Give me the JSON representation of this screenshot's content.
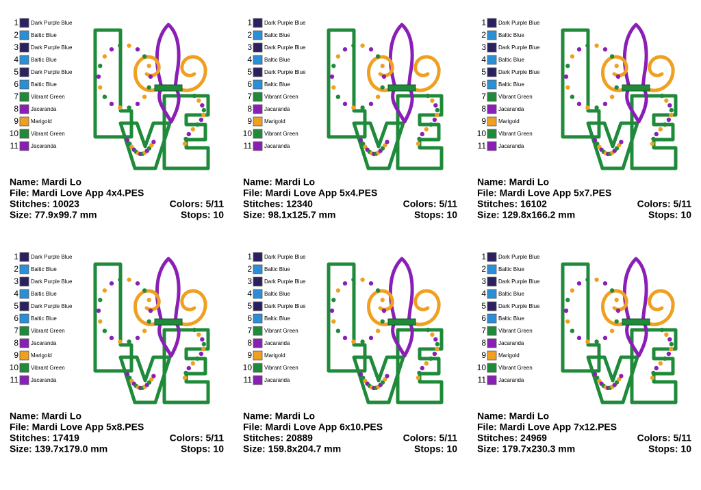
{
  "thread_colors": [
    {
      "number": "1",
      "name": "Dark Purple Blue",
      "color": "#2b2060"
    },
    {
      "number": "2",
      "name": "Baltic Blue",
      "color": "#2a8fd6"
    },
    {
      "number": "3",
      "name": "Dark Purple Blue",
      "color": "#2b2060"
    },
    {
      "number": "4",
      "name": "Baltic Blue",
      "color": "#2a8fd6"
    },
    {
      "number": "5",
      "name": "Dark Purple Blue",
      "color": "#2b2060"
    },
    {
      "number": "6",
      "name": "Baltic Blue",
      "color": "#2a8fd6"
    },
    {
      "number": "7",
      "name": "Vibrant Green",
      "color": "#1f8a3a"
    },
    {
      "number": "8",
      "name": "Jacaranda",
      "color": "#8a1fb5"
    },
    {
      "number": "9",
      "name": "Marigold",
      "color": "#f0a020"
    },
    {
      "number": "10",
      "name": "Vibrant Green",
      "color": "#1f8a3a"
    },
    {
      "number": "11",
      "name": "Jacaranda",
      "color": "#8a1fb5"
    }
  ],
  "panels": [
    {
      "name": "Name: Mardi Lo",
      "file": "File: Mardi Love App 4x4.PES",
      "stitches": "Stitches: 10023",
      "colors": "Colors: 5/11",
      "size": "Size: 77.9x99.7 mm",
      "stops": "Stops: 10"
    },
    {
      "name": "Name: Mardi Lo",
      "file": "File: Mardi Love App 5x4.PES",
      "stitches": "Stitches: 12340",
      "colors": "Colors: 5/11",
      "size": "Size: 98.1x125.7 mm",
      "stops": "Stops: 10"
    },
    {
      "name": "Name: Mardi Lo",
      "file": "File: Mardi Love App 5x7.PES",
      "stitches": "Stitches: 16102",
      "colors": "Colors: 5/11",
      "size": "Size: 129.8x166.2 mm",
      "stops": "Stops: 10"
    },
    {
      "name": "Name: Mardi Lo",
      "file": "File: Mardi Love App 5x8.PES",
      "stitches": "Stitches: 17419",
      "colors": "Colors: 5/11",
      "size": "Size: 139.7x179.0 mm",
      "stops": "Stops: 10"
    },
    {
      "name": "Name: Mardi Lo",
      "file": "File: Mardi Love App 6x10.PES",
      "stitches": "Stitches: 20889",
      "colors": "Colors: 5/11",
      "size": "Size: 159.8x204.7 mm",
      "stops": "Stops: 10"
    },
    {
      "name": "Name: Mardi Lo",
      "file": "File: Mardi Love App 7x12.PES",
      "stitches": "Stitches: 24969",
      "colors": "Colors: 5/11",
      "size": "Size: 179.7x230.3 mm",
      "stops": "Stops: 10"
    }
  ]
}
